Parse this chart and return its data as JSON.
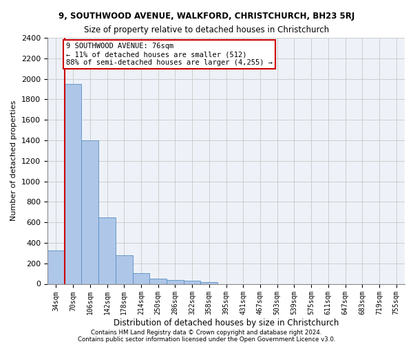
{
  "title_line1": "9, SOUTHWOOD AVENUE, WALKFORD, CHRISTCHURCH, BH23 5RJ",
  "title_line2": "Size of property relative to detached houses in Christchurch",
  "xlabel": "Distribution of detached houses by size in Christchurch",
  "ylabel": "Number of detached properties",
  "categories": [
    "34sqm",
    "70sqm",
    "106sqm",
    "142sqm",
    "178sqm",
    "214sqm",
    "250sqm",
    "286sqm",
    "322sqm",
    "358sqm",
    "395sqm",
    "431sqm",
    "467sqm",
    "503sqm",
    "539sqm",
    "575sqm",
    "611sqm",
    "647sqm",
    "683sqm",
    "719sqm",
    "755sqm"
  ],
  "values": [
    325,
    1950,
    1400,
    650,
    280,
    105,
    50,
    40,
    30,
    20,
    0,
    0,
    0,
    0,
    0,
    0,
    0,
    0,
    0,
    0,
    0
  ],
  "bar_color": "#aec6e8",
  "bar_edge_color": "#5a8fc2",
  "vline_color": "#cc0000",
  "annotation_text": "9 SOUTHWOOD AVENUE: 76sqm\n← 11% of detached houses are smaller (512)\n88% of semi-detached houses are larger (4,255) →",
  "annotation_box_color": "#ffffff",
  "annotation_box_edge_color": "#cc0000",
  "ylim": [
    0,
    2400
  ],
  "yticks": [
    0,
    200,
    400,
    600,
    800,
    1000,
    1200,
    1400,
    1600,
    1800,
    2000,
    2200,
    2400
  ],
  "grid_color": "#cccccc",
  "background_color": "#eef2f8",
  "footer_line1": "Contains HM Land Registry data © Crown copyright and database right 2024.",
  "footer_line2": "Contains public sector information licensed under the Open Government Licence v3.0."
}
